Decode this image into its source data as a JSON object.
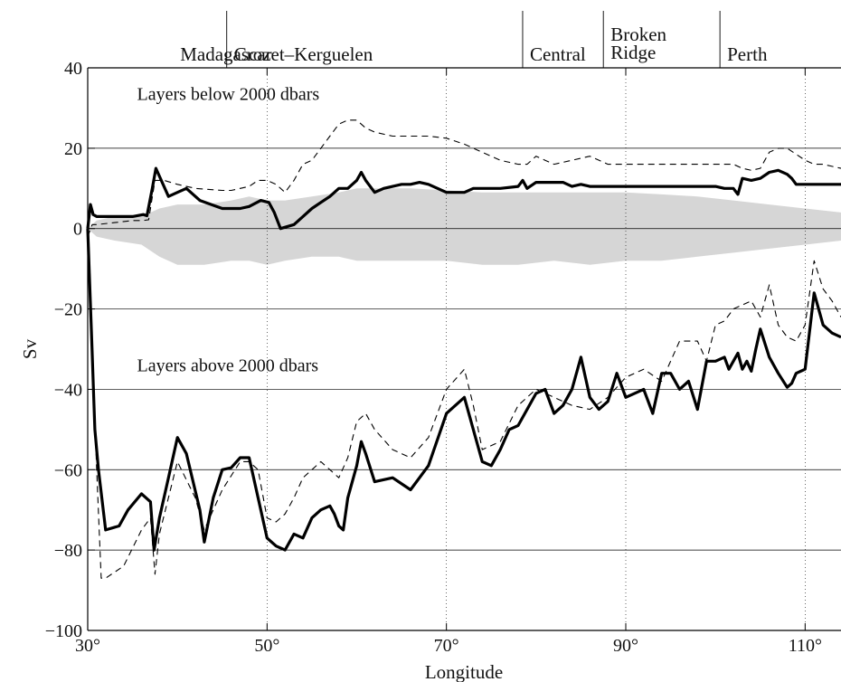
{
  "chart_data": {
    "type": "line",
    "xlabel": "Longitude",
    "ylabel": "Sv",
    "xlim": [
      30,
      114
    ],
    "ylim": [
      -100,
      40
    ],
    "x_ticks": [
      30,
      50,
      70,
      90,
      110
    ],
    "x_tick_labels": [
      "30°",
      "50°",
      "70°",
      "90°",
      "110°"
    ],
    "y_ticks": [
      -100,
      -80,
      -60,
      -40,
      -20,
      0,
      20,
      40
    ],
    "y_tick_labels": [
      "-100",
      "-80",
      "-60",
      "-40",
      "-20",
      "0",
      "20",
      "40"
    ],
    "grid": "horizontal",
    "annotations": [
      {
        "text": "Layers below 2000 dbars",
        "x": 35.5,
        "y": 32
      },
      {
        "text": "Layers above 2000 dbars",
        "x": 35.5,
        "y": -35.5
      }
    ],
    "regions": [
      {
        "label": "Madagascar",
        "x_start": 39.5,
        "x_end": 45.5
      },
      {
        "label": "Crozet–Kerguelen",
        "x_start": 45.5,
        "x_end": 78.5
      },
      {
        "label": "Central",
        "x_start": 78.5,
        "x_end": 87.5
      },
      {
        "label": "Broken\nRidge",
        "x_start": 87.5,
        "x_end": 100.5
      },
      {
        "label": "Perth",
        "x_start": 100.5,
        "x_end": 114
      }
    ],
    "shaded_band": {
      "x": [
        30,
        31,
        33,
        36,
        38,
        40,
        43,
        46,
        48,
        50,
        52,
        55,
        58,
        60,
        63,
        66,
        70,
        74,
        78,
        82,
        86,
        90,
        94,
        98,
        102,
        106,
        110,
        114
      ],
      "upper": [
        0,
        2,
        3,
        3,
        5,
        6,
        6,
        7,
        8,
        7,
        7,
        8,
        9,
        10,
        10,
        10,
        9.5,
        9,
        9,
        9,
        9,
        9,
        8.5,
        8,
        7,
        6,
        5,
        4
      ],
      "lower": [
        0,
        -2,
        -3,
        -4,
        -7,
        -9,
        -9,
        -8,
        -8,
        -9,
        -8,
        -7,
        -7,
        -8,
        -8,
        -8,
        -8,
        -9,
        -9,
        -8,
        -9,
        -8,
        -8,
        -7,
        -6,
        -5,
        -4,
        -3
      ]
    },
    "series": [
      {
        "style": "solid-thick",
        "x": [
          30,
          30.3,
          30.6,
          31,
          33,
          35,
          36.2,
          36.6,
          37.2,
          37.6,
          39,
          40,
          41,
          42.5,
          45,
          46,
          47,
          48,
          49.3,
          50.2,
          50.8,
          51.5,
          53,
          54,
          55,
          56,
          57,
          58,
          59,
          60,
          60.5,
          61,
          62,
          63,
          65,
          66,
          67,
          68,
          70,
          72,
          73,
          74,
          76,
          78,
          78.5,
          79,
          80,
          81,
          82,
          83,
          84,
          85,
          86,
          88,
          90,
          92,
          94,
          96,
          98,
          100,
          101,
          102,
          102.5,
          103,
          104,
          105,
          106,
          107,
          108,
          108.5,
          109,
          110,
          111,
          112,
          113,
          114
        ],
        "y": [
          0,
          6,
          3.5,
          3,
          3,
          3,
          3.5,
          3.2,
          10,
          15,
          8,
          9,
          10,
          7,
          5,
          5,
          5,
          5.5,
          7,
          6.5,
          4,
          0,
          1,
          3,
          5,
          6.5,
          8,
          10,
          10,
          12,
          14,
          12,
          9,
          10,
          11,
          11,
          11.5,
          11,
          9,
          9,
          10,
          10,
          10,
          10.5,
          12,
          10,
          11.5,
          11.5,
          11.5,
          11.5,
          10.5,
          11,
          10.5,
          10.5,
          10.5,
          10.5,
          10.5,
          10.5,
          10.5,
          10.5,
          10,
          10,
          8.5,
          12.5,
          12,
          12.5,
          14,
          14.5,
          13.5,
          12.5,
          11,
          11,
          11,
          11,
          11,
          11
        ]
      },
      {
        "style": "dashed-thin",
        "x": [
          30,
          30.5,
          31,
          33,
          35,
          36.2,
          36.8,
          37.5,
          38.5,
          40,
          42,
          45,
          46,
          47,
          48,
          49,
          50,
          51,
          52,
          53,
          54,
          55,
          56,
          57,
          58,
          59,
          60,
          61,
          62,
          64,
          66,
          68,
          70,
          72,
          74,
          76,
          78,
          79,
          80,
          81,
          82,
          84,
          86,
          88,
          90,
          92,
          94,
          96,
          98,
          100,
          101,
          102,
          103,
          104,
          105,
          106,
          107,
          108,
          109,
          110,
          111,
          112,
          113,
          114
        ],
        "y": [
          -2,
          1,
          1,
          1.5,
          2,
          2,
          2.2,
          12,
          12,
          11,
          10,
          9.5,
          9.5,
          10,
          10.5,
          12,
          12,
          11,
          9,
          12,
          16,
          17,
          20,
          23,
          26,
          27,
          27,
          25,
          24,
          23,
          23,
          23,
          22.5,
          21,
          19,
          17,
          16,
          16,
          18,
          17,
          16,
          17,
          18,
          16,
          16,
          16,
          16,
          16,
          16,
          16,
          16,
          16,
          15,
          14.5,
          15,
          19,
          20,
          20,
          18.5,
          17,
          16,
          16,
          15.5,
          15
        ]
      },
      {
        "style": "solid-thick",
        "x": [
          30,
          30.4,
          30.8,
          31.2,
          32,
          33.5,
          34.5,
          36,
          37,
          37.4,
          38,
          39,
          40,
          41,
          42.5,
          43,
          44,
          45,
          46,
          47,
          48,
          49,
          50,
          51,
          52,
          53,
          54,
          55,
          56,
          57,
          57.5,
          58,
          58.5,
          59,
          60,
          60.5,
          61,
          62,
          64,
          66,
          68,
          70,
          71,
          72,
          73,
          74,
          75,
          76,
          77,
          78,
          79,
          80,
          81,
          82,
          83,
          84,
          85,
          86,
          87,
          88,
          89,
          90,
          92,
          93,
          94,
          95,
          96,
          97,
          98,
          99,
          100,
          101,
          101.5,
          102,
          102.5,
          103,
          103.5,
          104,
          104.5,
          105,
          106,
          107,
          108,
          108.5,
          109,
          110,
          111,
          112,
          113,
          114
        ],
        "y": [
          0,
          -25,
          -50,
          -60,
          -75,
          -74,
          -70,
          -66,
          -68,
          -80,
          -72,
          -62,
          -52,
          -56,
          -70,
          -78,
          -67,
          -60,
          -59.5,
          -57,
          -57,
          -67,
          -77,
          -79,
          -80,
          -76,
          -77,
          -72,
          -70,
          -69,
          -71,
          -74,
          -75,
          -67,
          -59,
          -53,
          -56,
          -63,
          -62,
          -65,
          -59,
          -46,
          -44,
          -42,
          -50,
          -58,
          -59,
          -55,
          -50,
          -49,
          -45,
          -41,
          -40,
          -46,
          -44,
          -40,
          -32,
          -42,
          -45,
          -43,
          -36,
          -42,
          -40,
          -46,
          -36,
          -36,
          -40,
          -38,
          -45,
          -33,
          -33,
          -32,
          -35,
          -33,
          -31,
          -35,
          -33,
          -35.5,
          -30,
          -25,
          -32,
          -36,
          -39.5,
          -38.5,
          -36,
          -35,
          -16,
          -24,
          -26,
          -27
        ]
      },
      {
        "style": "dashed-thin",
        "x": [
          30,
          30.5,
          31,
          31.5,
          32,
          34,
          36,
          37,
          37.5,
          38,
          40,
          42,
          43,
          45,
          47,
          48,
          49,
          50,
          51,
          52,
          53,
          54,
          55,
          56,
          57,
          58,
          59,
          60,
          61,
          62,
          64,
          66,
          68,
          70,
          72,
          73,
          74,
          75,
          76,
          78,
          80,
          82,
          84,
          86,
          88,
          90,
          92,
          94,
          96,
          98,
          99,
          100,
          101,
          102,
          104,
          105,
          106,
          107,
          108,
          109,
          110,
          111,
          112,
          113,
          114
        ],
        "y": [
          -2,
          -30,
          -60,
          -87,
          -87,
          -84,
          -75,
          -72,
          -86,
          -76,
          -58,
          -67,
          -75,
          -65,
          -58,
          -58,
          -60,
          -72,
          -73,
          -71,
          -67,
          -62,
          -60,
          -58,
          -60,
          -62,
          -57,
          -48,
          -46,
          -50,
          -55,
          -57,
          -52,
          -40,
          -35,
          -44,
          -55,
          -54,
          -53,
          -44,
          -40,
          -42,
          -44,
          -45,
          -42,
          -37,
          -35,
          -38,
          -28,
          -28,
          -33,
          -24,
          -23,
          -20,
          -18,
          -22,
          -14,
          -24,
          -27,
          -28,
          -24,
          -8,
          -15,
          -18,
          -22
        ]
      }
    ]
  }
}
